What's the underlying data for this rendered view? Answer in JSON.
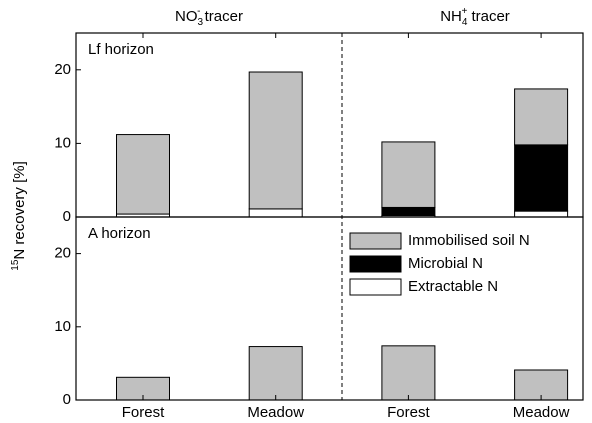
{
  "chart_data": {
    "type": "bar",
    "stacked": true,
    "ylabel": {
      "sup": "15",
      "text": "N recovery [%]"
    },
    "groups": [
      {
        "text": "NO",
        "sub": "3",
        "sup": "-",
        "tail": " tracer"
      },
      {
        "text": "NH",
        "sub": "4",
        "sup": "+",
        "tail": " tracer"
      }
    ],
    "categories": [
      "Forest",
      "Meadow",
      "Forest",
      "Meadow"
    ],
    "ylim": [
      0,
      25
    ],
    "yticks": [
      0,
      10,
      20
    ],
    "series": [
      {
        "name": "Immobilised soil N",
        "color": "#c0c0c0"
      },
      {
        "name": "Microbial N",
        "color": "#000000"
      },
      {
        "name": "Extractable N",
        "color": "#ffffff"
      }
    ],
    "panels": [
      {
        "label": "Lf horizon",
        "values": [
          [
            10.8,
            18.6,
            8.9,
            7.6
          ],
          [
            0,
            0,
            1.1,
            9.0
          ],
          [
            0.4,
            1.1,
            0.2,
            0.8
          ]
        ]
      },
      {
        "label": "A horizon",
        "values": [
          [
            3.1,
            7.3,
            7.4,
            4.1
          ],
          [
            0,
            0,
            0,
            0
          ],
          [
            0,
            0,
            0,
            0
          ]
        ]
      }
    ]
  }
}
